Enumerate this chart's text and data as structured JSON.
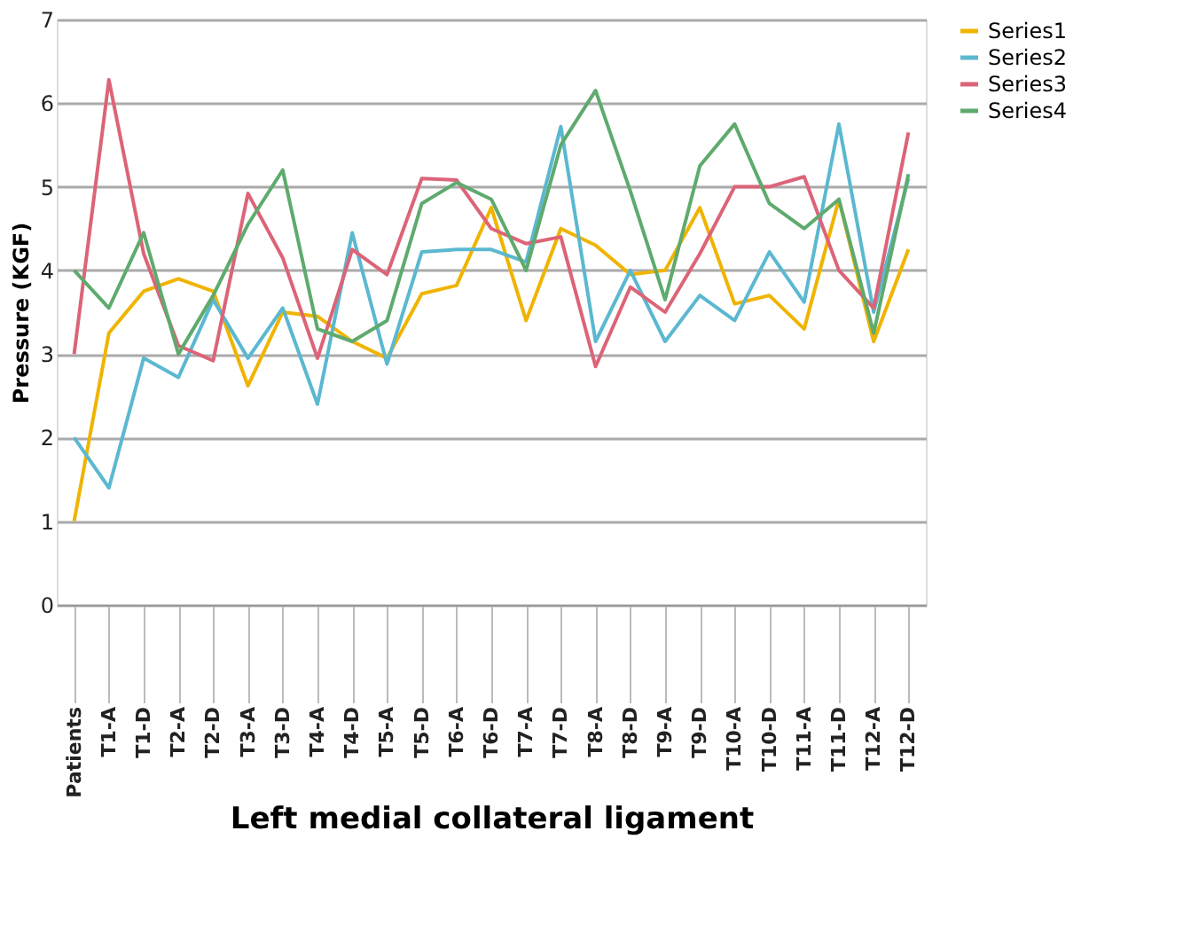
{
  "chart_data": {
    "type": "line",
    "xlabel": "Left medial collateral ligament",
    "ylabel": "Pressure (KGF)",
    "categories": [
      "Patients",
      "T1-A",
      "T1-D",
      "T2-A",
      "T2-D",
      "T3-A",
      "T3-D",
      "T4-A",
      "T4-D",
      "T5-A",
      "T5-D",
      "T6-A",
      "T6-D",
      "T7-A",
      "T7-D",
      "T8-A",
      "T8-D",
      "T9-A",
      "T9-D",
      "T10-A",
      "T10-D",
      "T11-A",
      "T11-D",
      "T12-A",
      "T12-D"
    ],
    "series": [
      {
        "name": "Series1",
        "color": "#f0b400",
        "values": [
          1,
          3.25,
          3.75,
          3.9,
          3.75,
          2.62,
          3.5,
          3.45,
          3.15,
          2.95,
          3.72,
          3.82,
          4.75,
          3.4,
          4.5,
          4.3,
          3.95,
          4.0,
          4.75,
          3.6,
          3.7,
          3.3,
          4.85,
          3.15,
          4.25
        ]
      },
      {
        "name": "Series2",
        "color": "#5bb8d0",
        "values": [
          2,
          1.4,
          2.95,
          2.72,
          3.65,
          2.95,
          3.55,
          2.4,
          4.45,
          2.88,
          4.22,
          4.25,
          4.25,
          4.1,
          5.72,
          3.15,
          4.0,
          3.15,
          3.7,
          3.4,
          4.22,
          3.62,
          5.75,
          3.5,
          5.1
        ]
      },
      {
        "name": "Series3",
        "color": "#dc6478",
        "values": [
          3,
          6.28,
          4.2,
          3.1,
          2.92,
          4.92,
          4.15,
          2.95,
          4.25,
          3.95,
          5.1,
          5.08,
          4.5,
          4.32,
          4.4,
          2.85,
          3.8,
          3.5,
          4.2,
          5.0,
          5.0,
          5.12,
          4.0,
          3.55,
          5.65
        ]
      },
      {
        "name": "Series4",
        "color": "#5faa6e",
        "values": [
          4,
          3.55,
          4.45,
          3.0,
          3.7,
          4.55,
          5.2,
          3.3,
          3.15,
          3.4,
          4.8,
          5.05,
          4.85,
          4.0,
          5.5,
          6.15,
          4.95,
          3.65,
          5.25,
          5.75,
          4.8,
          4.5,
          4.85,
          3.25,
          5.15
        ]
      }
    ],
    "ylim": [
      0,
      7
    ],
    "yticks": [
      0,
      1,
      2,
      3,
      4,
      5,
      6,
      7
    ],
    "grid": "y",
    "legend": "right",
    "line_style": "solid",
    "marker": "none"
  }
}
